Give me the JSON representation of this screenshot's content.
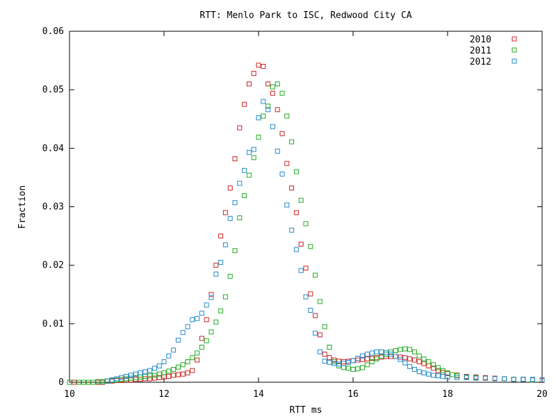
{
  "chart_data": {
    "type": "scatter",
    "title": "RTT: Menlo Park to ISC, Redwood City CA",
    "xlabel": "RTT ms",
    "ylabel": "Fraction",
    "xlim": [
      10,
      20
    ],
    "ylim": [
      0,
      0.06
    ],
    "grid": false,
    "legend": "top-right",
    "x_ticks": [
      "10",
      "12",
      "14",
      "16",
      "18",
      "20"
    ],
    "y_ticks": [
      "0",
      "0.01",
      "0.02",
      "0.03",
      "0.04",
      "0.05",
      "0.06"
    ],
    "series": [
      {
        "name": "2010",
        "color": "#cc2222",
        "x": [
          10.0,
          10.1,
          10.2,
          10.3,
          10.4,
          10.5,
          10.6,
          10.7,
          10.8,
          10.9,
          11.0,
          11.1,
          11.2,
          11.3,
          11.4,
          11.5,
          11.6,
          11.7,
          11.8,
          11.9,
          12.0,
          12.1,
          12.2,
          12.3,
          12.4,
          12.5,
          12.6,
          12.7,
          12.8,
          12.9,
          13.0,
          13.1,
          13.2,
          13.3,
          13.4,
          13.5,
          13.6,
          13.7,
          13.8,
          13.9,
          14.0,
          14.1,
          14.2,
          14.3,
          14.4,
          14.5,
          14.6,
          14.7,
          14.8,
          14.9,
          15.0,
          15.1,
          15.2,
          15.3,
          15.4,
          15.5,
          15.6,
          15.7,
          15.8,
          15.9,
          16.0,
          16.1,
          16.2,
          16.3,
          16.4,
          16.5,
          16.6,
          16.7,
          16.8,
          16.9,
          17.0,
          17.1,
          17.2,
          17.3,
          17.4,
          17.5,
          17.6,
          17.7,
          17.8,
          17.9,
          18.0,
          18.2,
          18.4,
          18.6,
          18.8,
          19.0,
          19.2,
          19.4,
          19.6,
          19.8,
          20.0
        ],
        "y": [
          0,
          0,
          0,
          0,
          0,
          0,
          0,
          0,
          0.0002,
          0.0002,
          0.0003,
          0.0003,
          0.0004,
          0.0004,
          0.0005,
          0.0005,
          0.0006,
          0.0006,
          0.0007,
          0.0008,
          0.0009,
          0.001,
          0.0012,
          0.0013,
          0.0014,
          0.0016,
          0.002,
          0.0038,
          0.0075,
          0.0107,
          0.015,
          0.02,
          0.025,
          0.029,
          0.0332,
          0.0382,
          0.0435,
          0.0475,
          0.051,
          0.0528,
          0.0542,
          0.054,
          0.051,
          0.0494,
          0.0466,
          0.0425,
          0.0374,
          0.0332,
          0.029,
          0.0236,
          0.0195,
          0.0151,
          0.0114,
          0.0081,
          0.0048,
          0.0042,
          0.0038,
          0.0036,
          0.0035,
          0.0036,
          0.0037,
          0.0038,
          0.0039,
          0.004,
          0.0041,
          0.0042,
          0.0043,
          0.0044,
          0.0044,
          0.0044,
          0.0043,
          0.0042,
          0.004,
          0.0038,
          0.0035,
          0.0032,
          0.0028,
          0.0024,
          0.002,
          0.0017,
          0.0015,
          0.0012,
          0.001,
          0.0009,
          0.0008,
          0.0007,
          0.0006,
          0.0005,
          0.0005,
          0.0004,
          0.0003
        ]
      },
      {
        "name": "2011",
        "color": "#22aa22",
        "x": [
          10.0,
          10.2,
          10.3,
          10.4,
          10.5,
          10.6,
          10.7,
          10.8,
          10.9,
          11.0,
          11.1,
          11.2,
          11.3,
          11.4,
          11.5,
          11.6,
          11.7,
          11.8,
          11.9,
          12.0,
          12.1,
          12.2,
          12.3,
          12.4,
          12.5,
          12.6,
          12.7,
          12.8,
          12.9,
          13.0,
          13.1,
          13.2,
          13.3,
          13.4,
          13.5,
          13.6,
          13.7,
          13.8,
          13.9,
          14.0,
          14.1,
          14.2,
          14.3,
          14.4,
          14.5,
          14.6,
          14.7,
          14.8,
          14.9,
          15.0,
          15.1,
          15.2,
          15.3,
          15.4,
          15.5,
          15.6,
          15.7,
          15.8,
          15.9,
          16.0,
          16.1,
          16.2,
          16.3,
          16.4,
          16.5,
          16.6,
          16.7,
          16.8,
          16.9,
          17.0,
          17.1,
          17.2,
          17.3,
          17.4,
          17.5,
          17.6,
          17.7,
          17.8,
          17.9,
          18.0,
          18.1,
          18.2,
          18.4,
          18.6,
          18.8,
          19.0,
          19.2,
          19.4,
          19.6,
          19.8,
          20.0
        ],
        "y": [
          0,
          0,
          0,
          0,
          0,
          0.0001,
          0.0001,
          0.0002,
          0.0003,
          0.0004,
          0.0005,
          0.0006,
          0.0007,
          0.0008,
          0.0009,
          0.001,
          0.0011,
          0.0012,
          0.0014,
          0.0016,
          0.0019,
          0.0022,
          0.0026,
          0.003,
          0.0035,
          0.0042,
          0.005,
          0.006,
          0.0071,
          0.0086,
          0.0103,
          0.0122,
          0.0146,
          0.0181,
          0.0225,
          0.0281,
          0.0319,
          0.0354,
          0.0384,
          0.0419,
          0.0455,
          0.0472,
          0.0505,
          0.051,
          0.0494,
          0.0455,
          0.0411,
          0.036,
          0.0311,
          0.0271,
          0.0232,
          0.0183,
          0.0138,
          0.0095,
          0.006,
          0.0035,
          0.0028,
          0.0025,
          0.0024,
          0.0022,
          0.0023,
          0.0025,
          0.003,
          0.0035,
          0.004,
          0.0044,
          0.0048,
          0.0052,
          0.0054,
          0.0056,
          0.0057,
          0.0056,
          0.0052,
          0.0045,
          0.004,
          0.0035,
          0.003,
          0.0025,
          0.002,
          0.0016,
          0.0013,
          0.0011,
          0.0009,
          0.0008,
          0.0007,
          0.0006,
          0.0006,
          0.0005,
          0.0005,
          0.0004,
          0.0004
        ]
      },
      {
        "name": "2012",
        "color": "#2288cc",
        "x": [
          10.8,
          10.9,
          11.0,
          11.1,
          11.2,
          11.3,
          11.4,
          11.5,
          11.6,
          11.7,
          11.8,
          11.9,
          12.0,
          12.1,
          12.2,
          12.3,
          12.4,
          12.5,
          12.6,
          12.7,
          12.8,
          12.9,
          13.0,
          13.1,
          13.2,
          13.3,
          13.4,
          13.5,
          13.6,
          13.7,
          13.8,
          13.9,
          14.0,
          14.1,
          14.2,
          14.3,
          14.4,
          14.5,
          14.6,
          14.7,
          14.8,
          14.9,
          15.0,
          15.1,
          15.2,
          15.3,
          15.4,
          15.5,
          15.6,
          15.7,
          15.8,
          15.9,
          16.0,
          16.1,
          16.2,
          16.3,
          16.4,
          16.5,
          16.6,
          16.7,
          16.8,
          16.9,
          17.0,
          17.1,
          17.2,
          17.3,
          17.4,
          17.5,
          17.6,
          17.7,
          17.8,
          17.9,
          18.0,
          18.2,
          18.4,
          18.6,
          18.8,
          19.0,
          19.2,
          19.4,
          19.6,
          19.8,
          20.0
        ],
        "y": [
          0.0002,
          0.0004,
          0.0006,
          0.0008,
          0.001,
          0.0012,
          0.0014,
          0.0016,
          0.0018,
          0.002,
          0.0024,
          0.0028,
          0.0035,
          0.0045,
          0.0055,
          0.0072,
          0.0085,
          0.0095,
          0.0107,
          0.0109,
          0.0118,
          0.0132,
          0.0145,
          0.0185,
          0.0205,
          0.0235,
          0.028,
          0.0307,
          0.034,
          0.0362,
          0.0393,
          0.0398,
          0.0452,
          0.048,
          0.0466,
          0.0437,
          0.0395,
          0.0356,
          0.0303,
          0.026,
          0.0227,
          0.0191,
          0.0146,
          0.0123,
          0.0084,
          0.0052,
          0.0036,
          0.0034,
          0.0032,
          0.0031,
          0.0032,
          0.0034,
          0.0037,
          0.0041,
          0.0045,
          0.0048,
          0.005,
          0.0052,
          0.0052,
          0.0051,
          0.0048,
          0.0044,
          0.0039,
          0.0033,
          0.0027,
          0.0022,
          0.0018,
          0.0016,
          0.0014,
          0.0012,
          0.0011,
          0.001,
          0.0009,
          0.0008,
          0.0008,
          0.0007,
          0.0007,
          0.0006,
          0.0006,
          0.0005,
          0.0005,
          0.0005,
          0.0004
        ]
      }
    ]
  }
}
